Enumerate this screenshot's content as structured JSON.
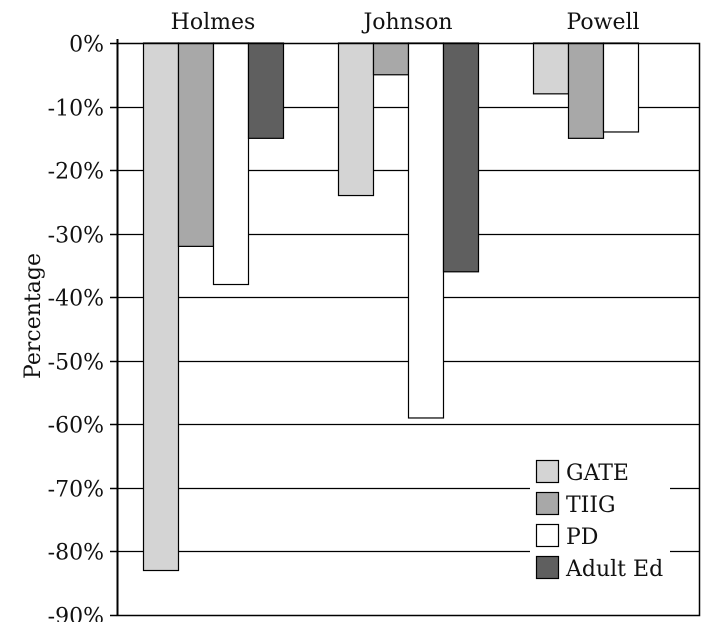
{
  "chart_data": {
    "type": "bar",
    "categories": [
      "Holmes",
      "Johnson",
      "Powell"
    ],
    "series": [
      {
        "name": "GATE",
        "values": [
          -83,
          -24,
          -8
        ],
        "color": "#d4d4d4"
      },
      {
        "name": "TIIG",
        "values": [
          -32,
          -5,
          -15
        ],
        "color": "#a8a8a8"
      },
      {
        "name": "PD",
        "values": [
          -38,
          -59,
          -14
        ],
        "color": "#ffffff"
      },
      {
        "name": "Adult Ed",
        "values": [
          -15,
          -36,
          null
        ],
        "color": "#5f5f5f"
      }
    ],
    "title": "",
    "xlabel": "",
    "ylabel": "Percentage",
    "ylim": [
      -90,
      0
    ],
    "yticks": [
      {
        "value": 0,
        "label": "0%"
      },
      {
        "value": -10,
        "label": "-10%"
      },
      {
        "value": -20,
        "label": "-20%"
      },
      {
        "value": -30,
        "label": "-30%"
      },
      {
        "value": -40,
        "label": "-40%"
      },
      {
        "value": -50,
        "label": "-50%"
      },
      {
        "value": -60,
        "label": "-60%"
      },
      {
        "value": -70,
        "label": "-70%"
      },
      {
        "value": -80,
        "label": "-80%"
      },
      {
        "value": -90,
        "label": "-90%"
      }
    ],
    "category_axis_position": "top",
    "grid": true,
    "legend": "bottom-right"
  }
}
